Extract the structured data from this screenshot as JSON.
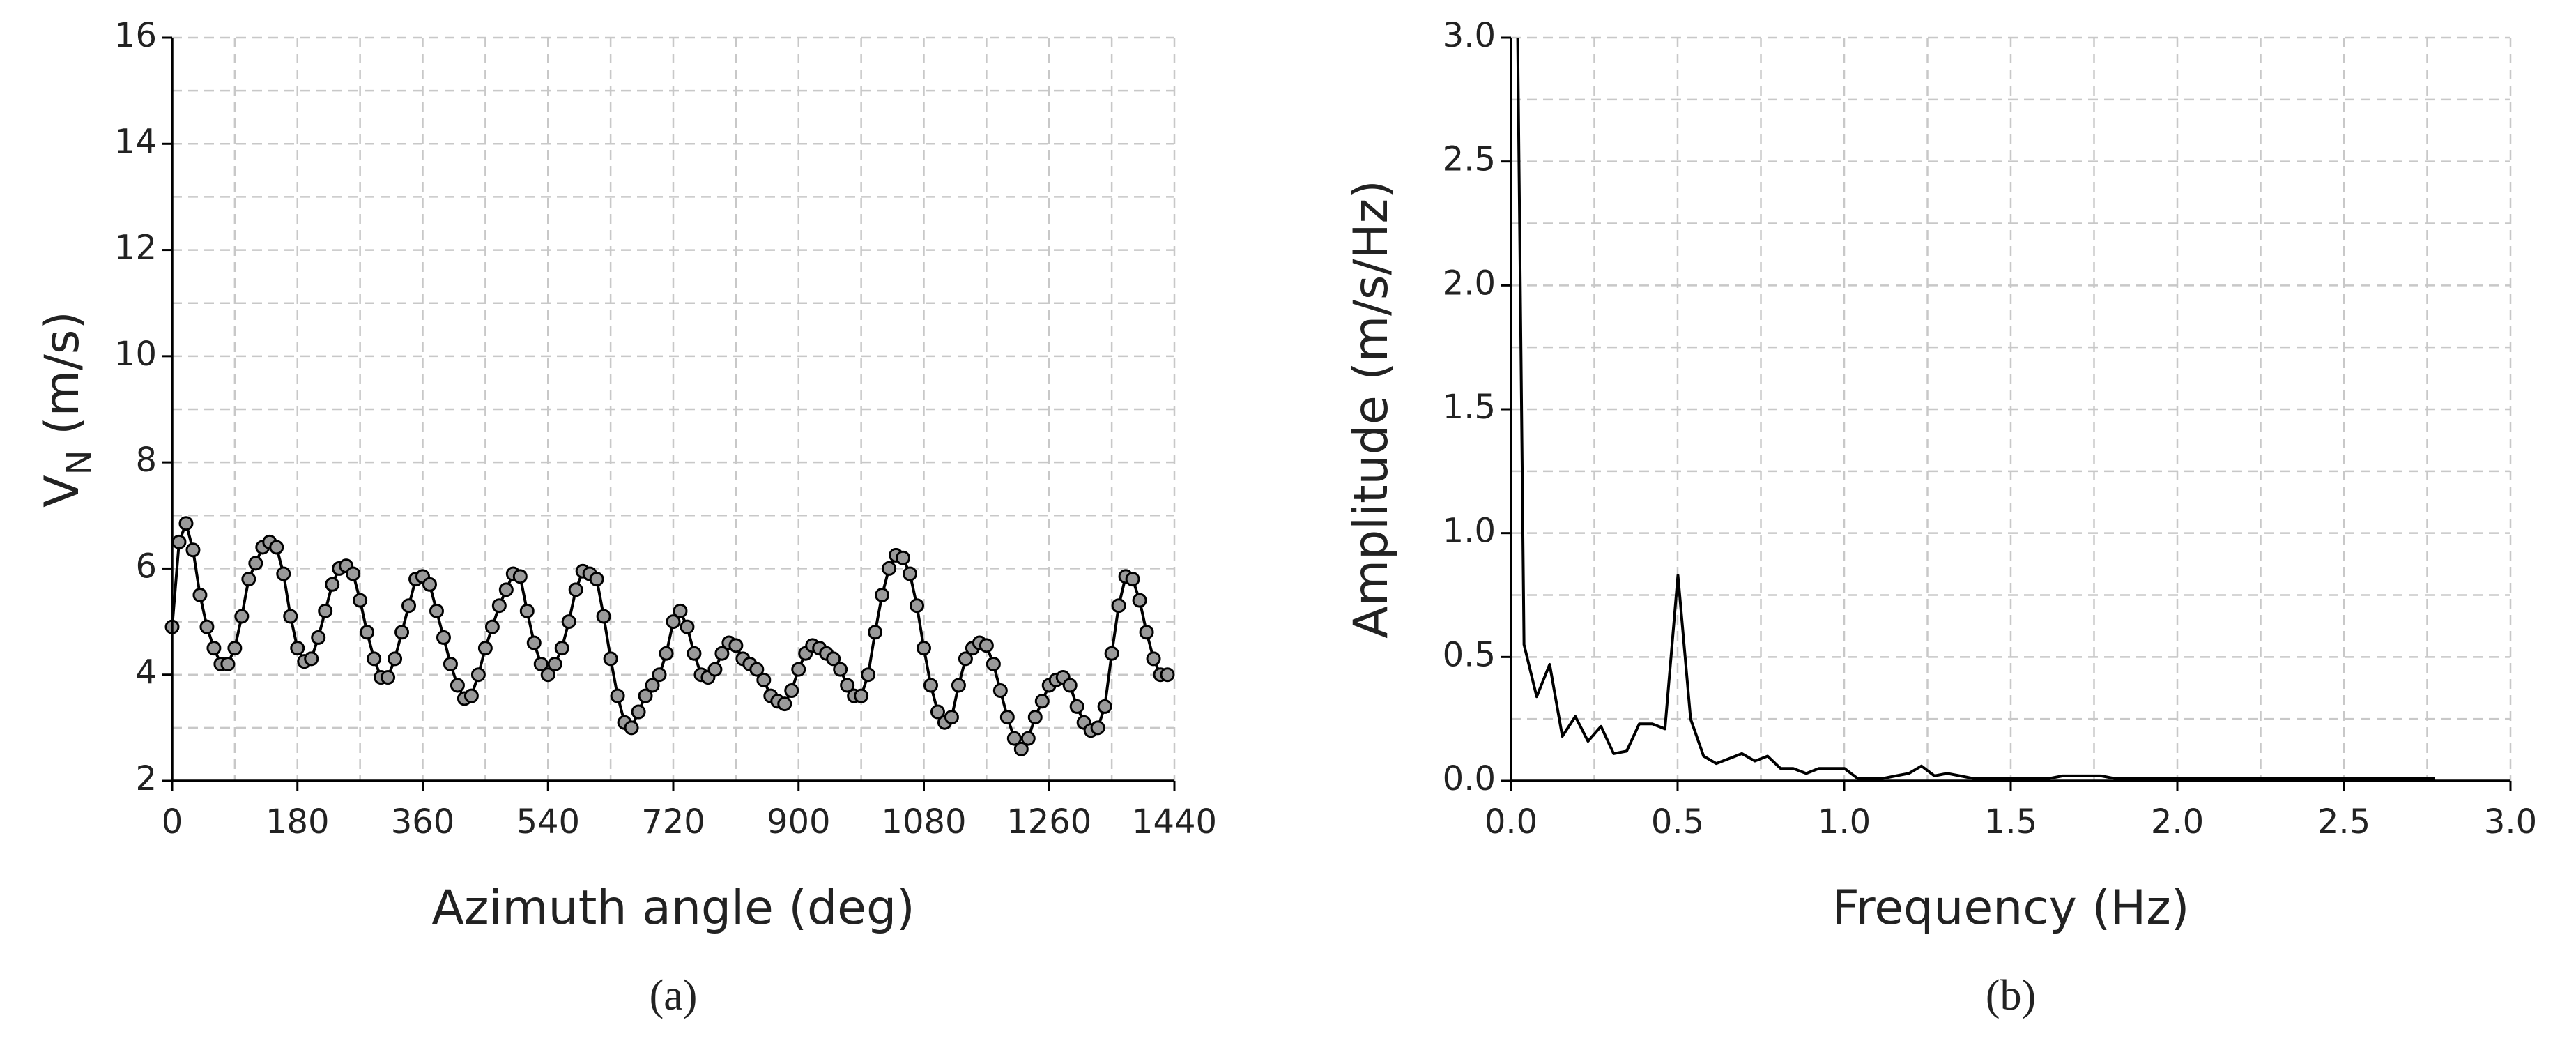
{
  "chart_data": [
    {
      "type": "line",
      "markers": true,
      "color": "#000000",
      "marker_fill": "#9a9a9a",
      "x_label": "Azimuth angle (deg)",
      "y_label": "V",
      "y_label_sub": "N",
      "y_label_unit": " (m/s)",
      "caption": "(a)",
      "xlim": [
        0,
        1440
      ],
      "xticks": [
        0,
        180,
        360,
        540,
        720,
        900,
        1080,
        1260,
        1440
      ],
      "ylim": [
        2,
        16
      ],
      "yticks": [
        2,
        4,
        6,
        8,
        10,
        12,
        14,
        16
      ],
      "grid": true,
      "x": [
        0,
        10,
        20,
        30,
        40,
        50,
        60,
        70,
        80,
        90,
        100,
        110,
        120,
        130,
        140,
        150,
        160,
        170,
        180,
        190,
        200,
        210,
        220,
        230,
        240,
        250,
        260,
        270,
        280,
        290,
        300,
        310,
        320,
        330,
        340,
        350,
        360,
        370,
        380,
        390,
        400,
        410,
        420,
        430,
        440,
        450,
        460,
        470,
        480,
        490,
        500,
        510,
        520,
        530,
        540,
        550,
        560,
        570,
        580,
        590,
        600,
        610,
        620,
        630,
        640,
        650,
        660,
        670,
        680,
        690,
        700,
        710,
        720,
        730,
        740,
        750,
        760,
        770,
        780,
        790,
        800,
        810,
        820,
        830,
        840,
        850,
        860,
        870,
        880,
        890,
        900,
        910,
        920,
        930,
        940,
        950,
        960,
        970,
        980,
        990,
        1000,
        1010,
        1020,
        1030,
        1040,
        1050,
        1060,
        1070,
        1080,
        1090,
        1100,
        1110,
        1120,
        1130,
        1140,
        1150,
        1160,
        1170,
        1180,
        1190,
        1200,
        1210,
        1220,
        1230,
        1240,
        1250,
        1260,
        1270,
        1280,
        1290,
        1300,
        1310,
        1320,
        1330,
        1340,
        1350,
        1360,
        1370,
        1380,
        1390,
        1400,
        1410,
        1420,
        1430
      ],
      "values": [
        4.9,
        6.5,
        6.85,
        6.35,
        5.5,
        4.9,
        4.5,
        4.2,
        4.2,
        4.5,
        5.1,
        5.8,
        6.1,
        6.4,
        6.5,
        6.4,
        5.9,
        5.1,
        4.5,
        4.25,
        4.3,
        4.7,
        5.2,
        5.7,
        6.0,
        6.05,
        5.9,
        5.4,
        4.8,
        4.3,
        3.95,
        3.95,
        4.3,
        4.8,
        5.3,
        5.8,
        5.85,
        5.7,
        5.2,
        4.7,
        4.2,
        3.8,
        3.55,
        3.6,
        4.0,
        4.5,
        4.9,
        5.3,
        5.6,
        5.9,
        5.85,
        5.2,
        4.6,
        4.2,
        4.0,
        4.2,
        4.5,
        5.0,
        5.6,
        5.95,
        5.9,
        5.8,
        5.1,
        4.3,
        3.6,
        3.1,
        3.0,
        3.3,
        3.6,
        3.8,
        4.0,
        4.4,
        5.0,
        5.2,
        4.9,
        4.4,
        4.0,
        3.95,
        4.1,
        4.4,
        4.6,
        4.55,
        4.3,
        4.2,
        4.1,
        3.9,
        3.6,
        3.5,
        3.45,
        3.7,
        4.1,
        4.4,
        4.55,
        4.5,
        4.4,
        4.3,
        4.1,
        3.8,
        3.6,
        3.6,
        4.0,
        4.8,
        5.5,
        6.0,
        6.25,
        6.2,
        5.9,
        5.3,
        4.5,
        3.8,
        3.3,
        3.1,
        3.2,
        3.8,
        4.3,
        4.5,
        4.6,
        4.55,
        4.2,
        3.7,
        3.2,
        2.8,
        2.6,
        2.8,
        3.2,
        3.5,
        3.8,
        3.9,
        3.95,
        3.8,
        3.4,
        3.1,
        2.95,
        3.0,
        3.4,
        4.4,
        5.3,
        5.85,
        5.8,
        5.4,
        4.8,
        4.3,
        4.0,
        4.0
      ]
    },
    {
      "type": "line",
      "markers": false,
      "color": "#000000",
      "x_label": "Frequency (Hz)",
      "y_label": "Amplitude (m/s/Hz)",
      "caption": "(b)",
      "xlim": [
        0,
        3
      ],
      "xticks": [
        {
          "value": 0,
          "label": "0.0"
        },
        {
          "value": 0.5,
          "label": "0.5"
        },
        {
          "value": 1,
          "label": "1.0"
        },
        {
          "value": 1.5,
          "label": "1.5"
        },
        {
          "value": 2,
          "label": "2.0"
        },
        {
          "value": 2.5,
          "label": "2.5"
        },
        {
          "value": 3,
          "label": "3.0"
        }
      ],
      "ylim": [
        0,
        3
      ],
      "yticks": [
        {
          "value": 0,
          "label": "0.0"
        },
        {
          "value": 0.5,
          "label": "0.5"
        },
        {
          "value": 1,
          "label": "1.0"
        },
        {
          "value": 1.5,
          "label": "1.5"
        },
        {
          "value": 2,
          "label": "2.0"
        },
        {
          "value": 2.5,
          "label": "2.5"
        },
        {
          "value": 3,
          "label": "3.0"
        }
      ],
      "grid": true,
      "x": [
        0.02,
        0.039,
        0.077,
        0.116,
        0.154,
        0.193,
        0.231,
        0.27,
        0.308,
        0.347,
        0.385,
        0.424,
        0.462,
        0.501,
        0.539,
        0.578,
        0.616,
        0.655,
        0.693,
        0.732,
        0.77,
        0.809,
        0.847,
        0.886,
        0.924,
        0.963,
        1.001,
        1.04,
        1.078,
        1.117,
        1.155,
        1.194,
        1.232,
        1.271,
        1.309,
        1.348,
        1.386,
        1.425,
        1.463,
        1.502,
        1.54,
        1.579,
        1.617,
        1.656,
        1.694,
        1.733,
        1.771,
        1.81,
        1.848,
        1.887,
        1.925,
        1.964,
        2.002,
        2.041,
        2.079,
        2.118,
        2.156,
        2.195,
        2.233,
        2.272,
        2.31,
        2.349,
        2.387,
        2.426,
        2.464,
        2.503,
        2.541,
        2.58,
        2.618,
        2.657,
        2.695,
        2.734,
        2.772
      ],
      "values": [
        3.0,
        0.55,
        0.34,
        0.47,
        0.18,
        0.26,
        0.16,
        0.22,
        0.11,
        0.12,
        0.23,
        0.23,
        0.21,
        0.83,
        0.25,
        0.1,
        0.07,
        0.09,
        0.11,
        0.08,
        0.1,
        0.05,
        0.05,
        0.03,
        0.05,
        0.05,
        0.05,
        0.01,
        0.01,
        0.01,
        0.02,
        0.03,
        0.06,
        0.02,
        0.03,
        0.02,
        0.01,
        0.01,
        0.01,
        0.01,
        0.01,
        0.01,
        0.01,
        0.02,
        0.02,
        0.02,
        0.02,
        0.01,
        0.01,
        0.01,
        0.01,
        0.01,
        0.01,
        0.01,
        0.01,
        0.01,
        0.01,
        0.01,
        0.01,
        0.01,
        0.01,
        0.01,
        0.01,
        0.01,
        0.01,
        0.01,
        0.01,
        0.01,
        0.01,
        0.01,
        0.01,
        0.01,
        0.01
      ]
    }
  ]
}
